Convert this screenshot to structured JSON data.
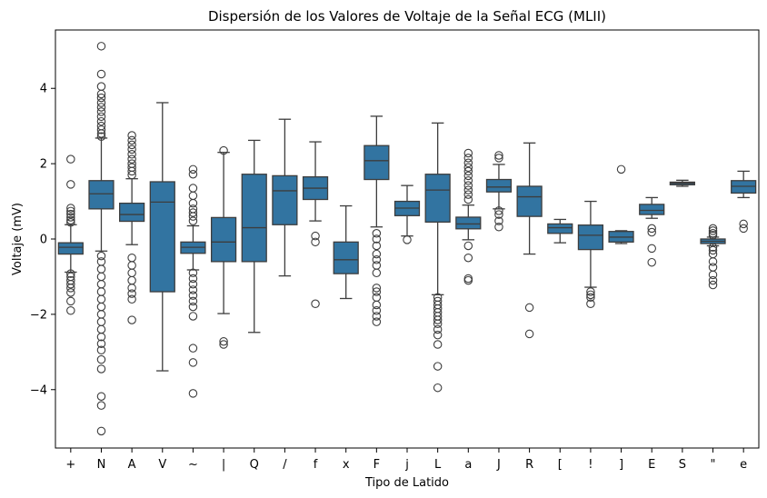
{
  "chart_data": {
    "type": "box",
    "title": "Dispersión de los Valores de Voltaje de la Señal ECG (MLII)",
    "xlabel": "Tipo de Latido",
    "ylabel": "Voltaje (mV)",
    "ylim": [
      -5.55,
      5.55
    ],
    "yticks": [
      -4,
      -2,
      0,
      2,
      4
    ],
    "box_color": "#3274a1",
    "line_color": "#3d3d3d",
    "grid": false,
    "categories": [
      "+",
      "N",
      "A",
      "V",
      "~",
      "|",
      "Q",
      "/",
      "f",
      "x",
      "F",
      "j",
      "L",
      "a",
      "J",
      "R",
      "[",
      "!",
      "]",
      "E",
      "S",
      "\"",
      "e"
    ],
    "boxes": [
      {
        "label": "+",
        "whislo": -0.88,
        "q1": -0.4,
        "med": -0.22,
        "q3": -0.1,
        "whishi": 0.38,
        "fliers": [
          2.12,
          1.45,
          0.82,
          0.74,
          0.66,
          0.58,
          0.5,
          0.44,
          -0.92,
          -1.0,
          -1.1,
          -1.2,
          -1.3,
          -1.42,
          -1.65,
          -1.9
        ]
      },
      {
        "label": "N",
        "whislo": -0.32,
        "q1": 0.8,
        "med": 1.2,
        "q3": 1.55,
        "whishi": 2.68,
        "fliers": [
          5.12,
          4.38,
          4.05,
          3.85,
          3.75,
          3.62,
          3.5,
          3.38,
          3.25,
          3.12,
          3.0,
          2.9,
          2.8,
          2.72,
          -0.45,
          -0.6,
          -0.8,
          -1.0,
          -1.2,
          -1.4,
          -1.6,
          -1.8,
          -2.0,
          -2.2,
          -2.4,
          -2.6,
          -2.78,
          -2.95,
          -3.2,
          -3.45,
          -4.18,
          -4.42,
          -5.1
        ]
      },
      {
        "label": "A",
        "whislo": -0.15,
        "q1": 0.47,
        "med": 0.65,
        "q3": 0.95,
        "whishi": 1.6,
        "fliers": [
          2.75,
          2.62,
          2.5,
          2.38,
          2.25,
          2.12,
          2.0,
          1.9,
          1.8,
          1.7,
          -0.5,
          -0.7,
          -0.9,
          -1.1,
          -1.3,
          -1.45,
          -1.6,
          -2.15
        ]
      },
      {
        "label": "V",
        "whislo": -3.5,
        "q1": -1.4,
        "med": 0.98,
        "q3": 1.52,
        "whishi": 3.62,
        "fliers": []
      },
      {
        "label": "~",
        "whislo": -0.82,
        "q1": -0.38,
        "med": -0.22,
        "q3": -0.08,
        "whishi": 0.35,
        "fliers": [
          1.85,
          1.72,
          1.35,
          1.15,
          0.95,
          0.8,
          0.7,
          0.6,
          0.48,
          -0.9,
          -1.05,
          -1.2,
          -1.35,
          -1.5,
          -1.65,
          -1.8,
          -2.05,
          -2.9,
          -3.28,
          -4.1
        ]
      },
      {
        "label": "|",
        "whislo": -1.98,
        "q1": -0.6,
        "med": -0.08,
        "q3": 0.57,
        "whishi": 2.3,
        "fliers": [
          2.35,
          -2.72,
          -2.8
        ]
      },
      {
        "label": "Q",
        "whislo": -2.48,
        "q1": -0.6,
        "med": 0.3,
        "q3": 1.72,
        "whishi": 2.62,
        "fliers": []
      },
      {
        "label": "/",
        "whislo": -0.98,
        "q1": 0.38,
        "med": 1.28,
        "q3": 1.68,
        "whishi": 3.18,
        "fliers": []
      },
      {
        "label": "f",
        "whislo": 0.48,
        "q1": 1.05,
        "med": 1.35,
        "q3": 1.65,
        "whishi": 2.58,
        "fliers": [
          0.08,
          -0.08,
          -1.72
        ]
      },
      {
        "label": "x",
        "whislo": -1.58,
        "q1": -0.92,
        "med": -0.55,
        "q3": -0.08,
        "whishi": 0.88,
        "fliers": []
      },
      {
        "label": "F",
        "whislo": 0.32,
        "q1": 1.58,
        "med": 2.08,
        "q3": 2.48,
        "whishi": 3.26,
        "fliers": [
          0.15,
          0.0,
          -0.18,
          -0.4,
          -0.55,
          -0.7,
          -0.9,
          -1.3,
          -1.4,
          -1.55,
          -1.75,
          -1.9,
          -2.05,
          -2.2
        ]
      },
      {
        "label": "j",
        "whislo": 0.08,
        "q1": 0.62,
        "med": 0.82,
        "q3": 1.0,
        "whishi": 1.42,
        "fliers": [
          -0.02
        ]
      },
      {
        "label": "L",
        "whislo": -1.48,
        "q1": 0.45,
        "med": 1.3,
        "q3": 1.72,
        "whishi": 3.08,
        "fliers": [
          -1.55,
          -1.65,
          -1.75,
          -1.85,
          -1.95,
          -2.05,
          -2.15,
          -2.25,
          -2.4,
          -2.55,
          -2.8,
          -3.38,
          -3.95
        ]
      },
      {
        "label": "a",
        "whislo": -0.02,
        "q1": 0.27,
        "med": 0.4,
        "q3": 0.58,
        "whishi": 0.9,
        "fliers": [
          2.28,
          2.15,
          2.02,
          1.9,
          1.8,
          1.68,
          1.55,
          1.42,
          1.3,
          1.18,
          1.05,
          -0.18,
          -0.5,
          -1.05,
          -1.1
        ]
      },
      {
        "label": "J",
        "whislo": 0.8,
        "q1": 1.25,
        "med": 1.38,
        "q3": 1.58,
        "whishi": 1.98,
        "fliers": [
          2.22,
          2.15,
          0.75,
          0.65,
          0.48,
          0.32
        ]
      },
      {
        "label": "R",
        "whislo": -0.4,
        "q1": 0.6,
        "med": 1.12,
        "q3": 1.4,
        "whishi": 2.55,
        "fliers": [
          -1.82,
          -2.52
        ]
      },
      {
        "label": "[",
        "whislo": -0.1,
        "q1": 0.15,
        "med": 0.3,
        "q3": 0.4,
        "whishi": 0.52,
        "fliers": []
      },
      {
        "label": "!",
        "whislo": -1.28,
        "q1": -0.28,
        "med": 0.1,
        "q3": 0.37,
        "whishi": 1.0,
        "fliers": [
          -1.4,
          -1.48,
          -1.55,
          -1.72
        ]
      },
      {
        "label": "]",
        "whislo": -0.12,
        "q1": -0.08,
        "med": 0.05,
        "q3": 0.2,
        "whishi": 0.22,
        "fliers": [
          1.85
        ]
      },
      {
        "label": "E",
        "whislo": 0.55,
        "q1": 0.65,
        "med": 0.76,
        "q3": 0.92,
        "whishi": 1.1,
        "fliers": [
          0.28,
          0.18,
          -0.25,
          -0.62
        ]
      },
      {
        "label": "S",
        "whislo": 1.4,
        "q1": 1.44,
        "med": 1.48,
        "q3": 1.51,
        "whishi": 1.56,
        "fliers": []
      },
      {
        "label": "\"",
        "whislo": -0.18,
        "q1": -0.12,
        "med": -0.06,
        "q3": 0.0,
        "whishi": 0.05,
        "fliers": [
          0.28,
          0.22,
          0.15,
          0.1,
          -0.22,
          -0.3,
          -0.4,
          -0.6,
          -0.75,
          -0.95,
          -1.1,
          -1.22
        ]
      },
      {
        "label": "e",
        "whislo": 1.1,
        "q1": 1.22,
        "med": 1.4,
        "q3": 1.55,
        "whishi": 1.8,
        "fliers": [
          0.4,
          0.28
        ]
      }
    ]
  }
}
